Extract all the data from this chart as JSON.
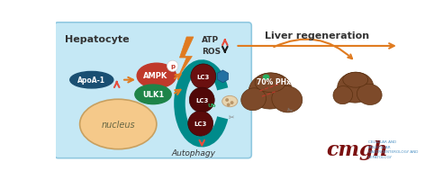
{
  "bg_color": "#ffffff",
  "cell_bg": "#c5e8f5",
  "hepatocyte_label": "Hepatocyte",
  "nucleus_label": "nucleus",
  "autophagy_label": "Autophagy",
  "atp_label": "ATP",
  "ros_label": "ROS",
  "liver_regen_label": "Liver regeneration",
  "phx_label": "70% PHx",
  "ampk_color": "#c0392b",
  "ulk1_color": "#1e8449",
  "apoa1_color": "#1a4f72",
  "lc3_color": "#6b1010",
  "teal_color": "#008b8b",
  "orange_color": "#e07b20",
  "liver_color": "#7d4a2a",
  "liver_edge": "#5a3010",
  "liver_dark": "#6b3822",
  "cmgh_color": "#7b1010",
  "cmgh_blue": "#4a90c4",
  "red_arrow": "#e74c3c",
  "black_arrow": "#1a1a1a"
}
